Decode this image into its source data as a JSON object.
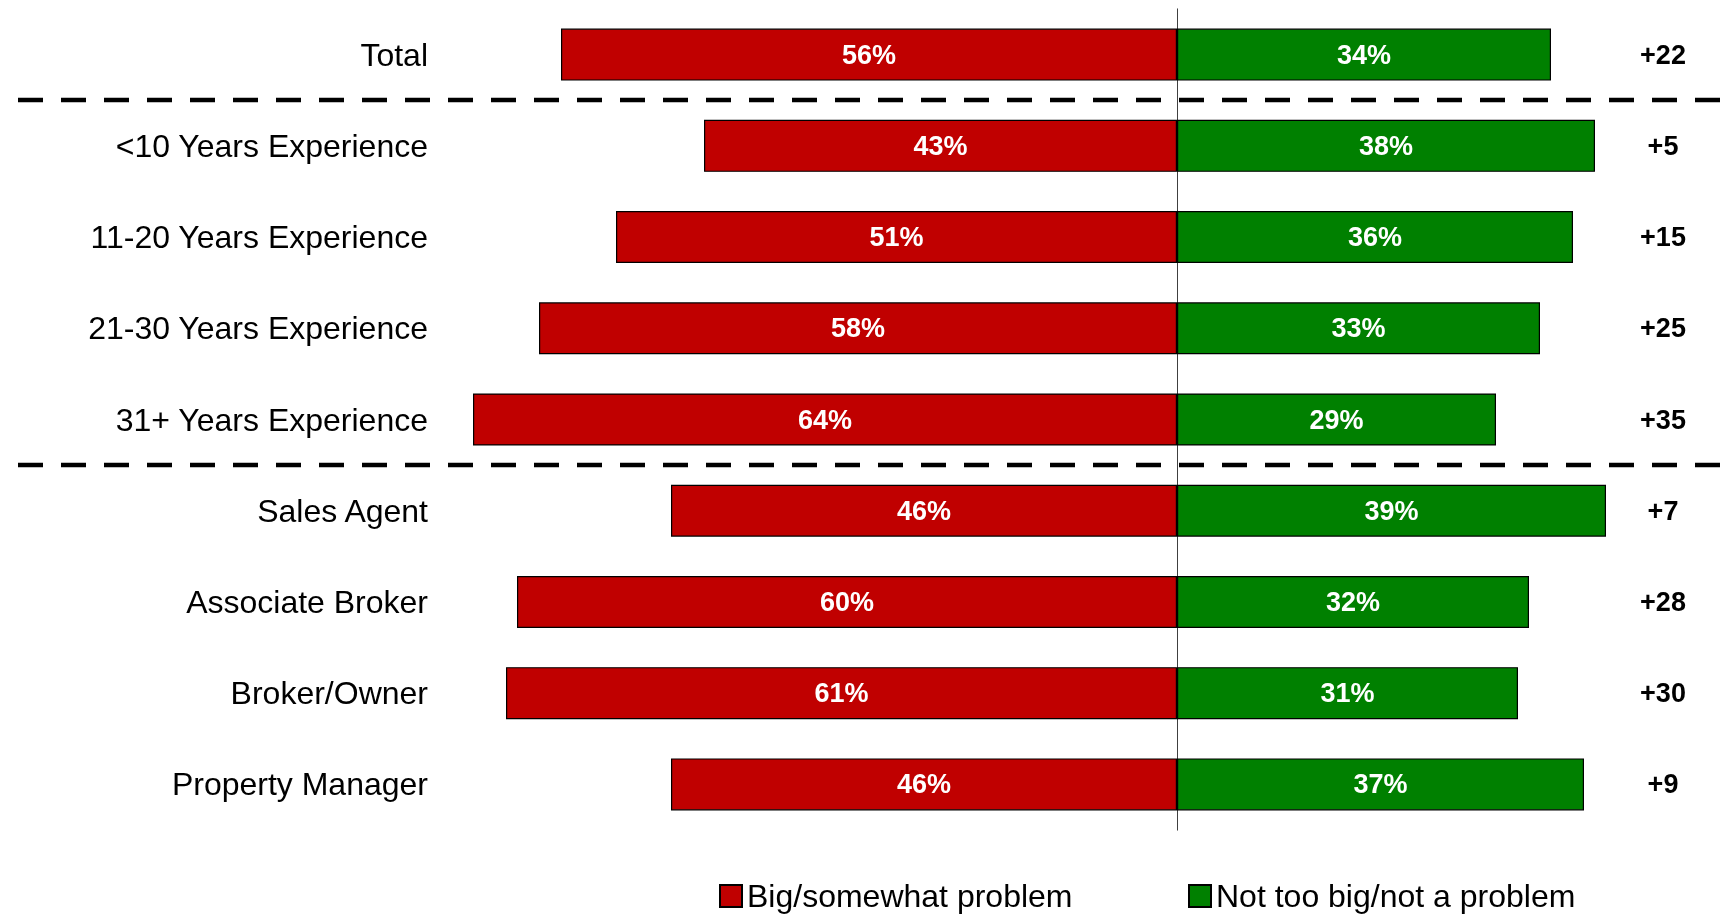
{
  "chart_data": [
    {
      "type": "bar",
      "orientation": "horizontal",
      "categories": [
        "Total",
        "<10 Years Experience",
        "11-20 Years Experience",
        "21-30 Years Experience",
        "31+ Years Experience",
        "Sales Agent",
        "Associate Broker",
        "Broker/Owner",
        "Property Manager"
      ],
      "series": [
        {
          "name": "Big/somewhat problem",
          "color": "#c00000",
          "values": [
            56,
            43,
            51,
            58,
            64,
            46,
            60,
            61,
            46
          ],
          "value_labels": [
            "56%",
            "43%",
            "51%",
            "58%",
            "64%",
            "46%",
            "60%",
            "61%",
            "46%"
          ]
        }
      ],
      "xlim": [
        64,
        0
      ],
      "tick_labels": "y",
      "legend": "bottom"
    },
    {
      "type": "bar",
      "orientation": "horizontal",
      "categories": [
        null,
        null,
        null,
        null,
        null,
        null,
        null,
        null,
        null
      ],
      "series": [
        {
          "name": "Not too big/not a problem",
          "color": "#008000",
          "values": [
            34,
            38,
            36,
            33,
            29,
            39,
            32,
            31,
            37
          ],
          "value_labels": [
            "34%",
            "38%",
            "36%",
            "33%",
            "29%",
            "39%",
            "32%",
            "31%",
            "37%"
          ]
        }
      ],
      "tick_labels": false,
      "legend": "bottom",
      "annotations": [
        "+22",
        "+5",
        "+15",
        "+25",
        "+35",
        "+7",
        "+28",
        "+30",
        "+9"
      ]
    }
  ]
}
